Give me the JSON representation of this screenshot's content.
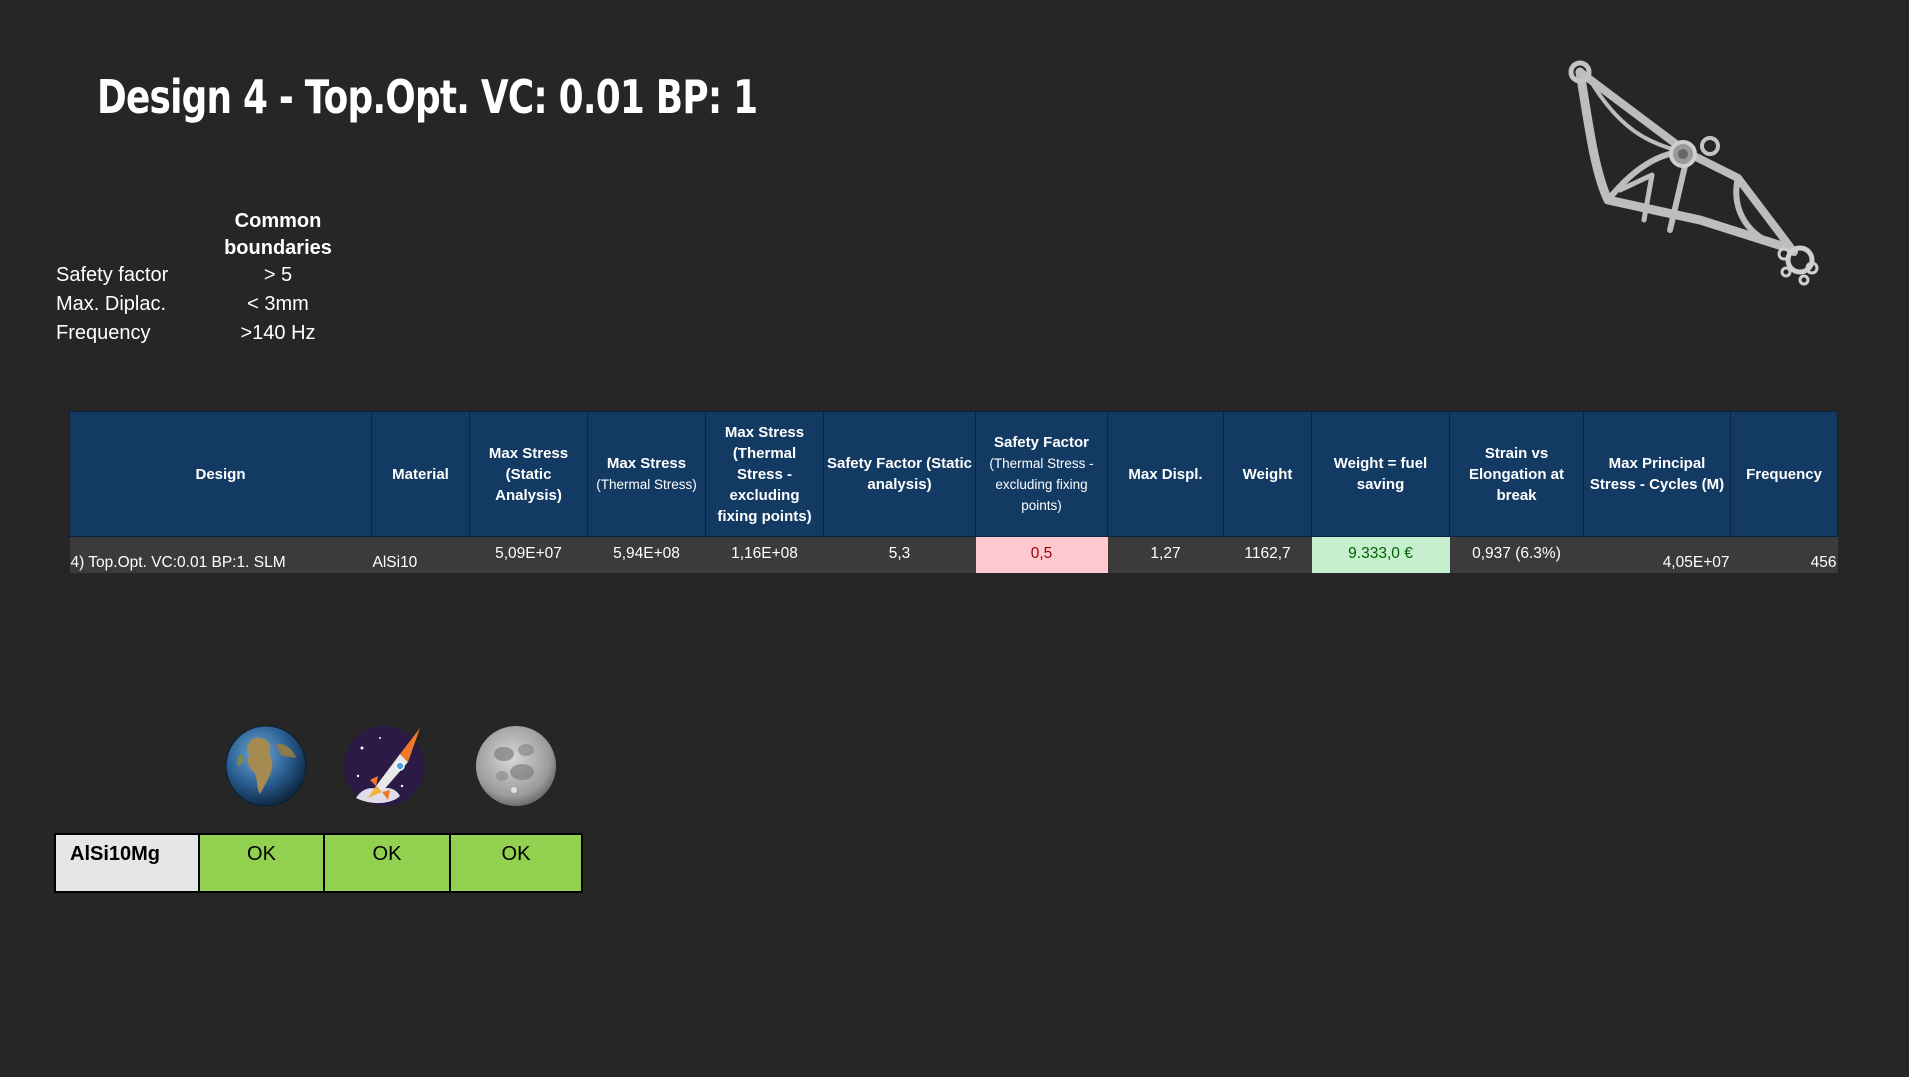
{
  "title": "Design 4 - Top.Opt. VC: 0.01 BP: 1",
  "boundaries": {
    "header": "Common boundaries",
    "rows": [
      {
        "label": "Safety factor",
        "value": "> 5"
      },
      {
        "label": "Max. Diplac.",
        "value": "< 3mm"
      },
      {
        "label": "Frequency",
        "value": ">140 Hz"
      }
    ]
  },
  "results_table": {
    "headers": {
      "design": "Design",
      "material": "Material",
      "max_stress_static": "Max Stress (Static Analysis)",
      "max_stress_thermal_title": "Max Stress",
      "max_stress_thermal_sub": "(Thermal Stress)",
      "max_stress_thermal_excl": "Max Stress (Thermal Stress - excluding fixing points)",
      "safety_static": "Safety Factor (Static analysis)",
      "safety_thermal_title": "Safety Factor",
      "safety_thermal_sub": "(Thermal Stress - excluding fixing points)",
      "max_displ": "Max Displ.",
      "weight": "Weight",
      "weight_fuel": "Weight = fuel saving",
      "strain": "Strain vs Elongation at break",
      "max_principal": "Max Principal Stress - Cycles (M)",
      "frequency": "Frequency"
    },
    "row": {
      "design": "4) Top.Opt. VC:0.01 BP:1. SLM",
      "material": "AlSi10",
      "max_stress_static": "5,09E+07",
      "max_stress_thermal": "5,94E+08",
      "max_stress_thermal_excl": "1,16E+08",
      "safety_static": "5,3",
      "safety_thermal": "0,5",
      "max_displ": "1,27",
      "weight": "1162,7",
      "weight_fuel": "9.333,0 €",
      "strain": "0,937 (6.3%)",
      "max_principal": "4,05E+07",
      "frequency": "456"
    }
  },
  "environment_icons": [
    {
      "name": "earth-icon"
    },
    {
      "name": "rocket-icon"
    },
    {
      "name": "moon-icon"
    }
  ],
  "status_table": {
    "material": "AlSi10Mg",
    "results": [
      "OK",
      "OK",
      "OK"
    ]
  },
  "colors": {
    "background": "#262626",
    "header_blue": "#133a63",
    "fail_bg": "#ffc7ce",
    "pass_bg": "#c6efce",
    "ok_green": "#92d050"
  }
}
